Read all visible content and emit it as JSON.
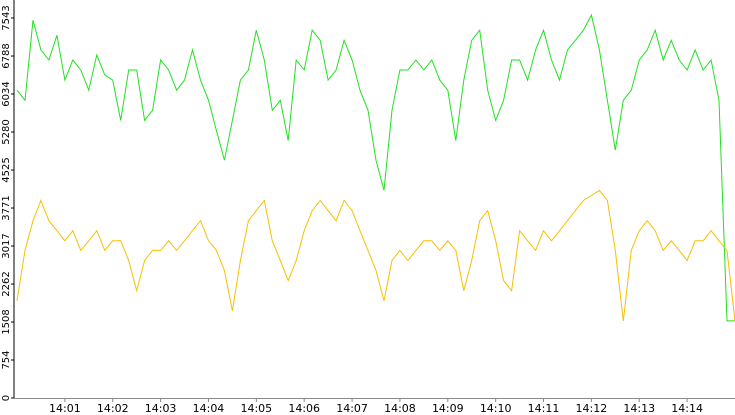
{
  "chart_data": {
    "type": "line",
    "x": [
      0,
      10,
      20,
      30,
      40,
      50,
      60,
      70,
      80,
      90,
      100,
      110,
      120,
      130,
      140,
      150,
      160,
      170,
      180,
      190,
      200,
      210,
      220,
      230,
      240,
      250,
      260,
      270,
      280,
      290,
      300,
      310,
      320,
      330,
      340,
      350,
      360,
      370,
      380,
      390,
      400,
      410,
      420,
      430,
      440,
      450,
      460,
      470,
      480,
      490,
      500,
      510,
      520,
      530,
      540,
      550,
      560,
      570,
      580,
      590,
      600,
      610,
      620,
      630,
      640,
      650,
      660,
      670,
      680,
      690,
      700,
      710,
      720,
      730,
      740,
      750,
      760,
      770,
      780,
      790,
      800,
      810,
      820,
      830,
      840,
      850,
      860,
      870,
      880,
      890,
      900
    ],
    "xlim": [
      0,
      900
    ],
    "xticks": [
      {
        "value": 60,
        "label": "14:01"
      },
      {
        "value": 120,
        "label": "14:02"
      },
      {
        "value": 180,
        "label": "14:03"
      },
      {
        "value": 240,
        "label": "14:04"
      },
      {
        "value": 300,
        "label": "14:05"
      },
      {
        "value": 360,
        "label": "14:06"
      },
      {
        "value": 420,
        "label": "14:07"
      },
      {
        "value": 480,
        "label": "14:08"
      },
      {
        "value": 540,
        "label": "14:09"
      },
      {
        "value": 600,
        "label": "14:10"
      },
      {
        "value": 660,
        "label": "14:11"
      },
      {
        "value": 720,
        "label": "14:12"
      },
      {
        "value": 780,
        "label": "14:13"
      },
      {
        "value": 840,
        "label": "14:14"
      }
    ],
    "ylim": [
      0,
      7900
    ],
    "yticks": [
      0,
      754,
      1508,
      2262,
      3017,
      3771,
      4525,
      5280,
      6034,
      6788,
      7543
    ],
    "series": [
      {
        "color": "#22e022",
        "values": [
          6110,
          5910,
          7500,
          6910,
          6710,
          7200,
          6310,
          6710,
          6510,
          6110,
          6810,
          6410,
          6310,
          5510,
          6510,
          6510,
          5510,
          5710,
          6710,
          6510,
          6110,
          6310,
          6910,
          6310,
          5910,
          5310,
          4720,
          5510,
          6310,
          6510,
          7300,
          6710,
          5710,
          5910,
          5110,
          6710,
          6510,
          7300,
          7100,
          6310,
          6510,
          7100,
          6710,
          6110,
          5710,
          4720,
          4120,
          5710,
          6510,
          6510,
          6710,
          6510,
          6710,
          6310,
          6110,
          5110,
          6310,
          7100,
          7300,
          6110,
          5510,
          5910,
          6710,
          6710,
          6310,
          6910,
          7300,
          6710,
          6310,
          6910,
          7100,
          7300,
          7600,
          6910,
          5910,
          4920,
          5910,
          6110,
          6710,
          6910,
          7300,
          6710,
          7100,
          6710,
          6510,
          6910,
          6510,
          6710,
          5910,
          1530,
          1530
        ]
      },
      {
        "color": "#f5c000",
        "values": [
          1930,
          2930,
          3520,
          3920,
          3520,
          3320,
          3120,
          3320,
          2930,
          3120,
          3320,
          2930,
          3120,
          3120,
          2730,
          2130,
          2730,
          2930,
          2930,
          3120,
          2930,
          3120,
          3320,
          3520,
          3120,
          2930,
          2530,
          1730,
          2730,
          3520,
          3720,
          3920,
          3120,
          2730,
          2330,
          2730,
          3320,
          3720,
          3920,
          3720,
          3520,
          3920,
          3720,
          3320,
          2930,
          2530,
          1930,
          2730,
          2930,
          2730,
          2930,
          3120,
          3120,
          2930,
          3120,
          2930,
          2130,
          2730,
          3520,
          3720,
          3120,
          2330,
          2130,
          3320,
          3120,
          2930,
          3320,
          3120,
          3320,
          3520,
          3720,
          3920,
          4020,
          4120,
          3920,
          2930,
          1530,
          2930,
          3320,
          3520,
          3320,
          2930,
          3120,
          2930,
          2730,
          3120,
          3120,
          3320,
          3120,
          2930,
          1530
        ]
      }
    ]
  }
}
